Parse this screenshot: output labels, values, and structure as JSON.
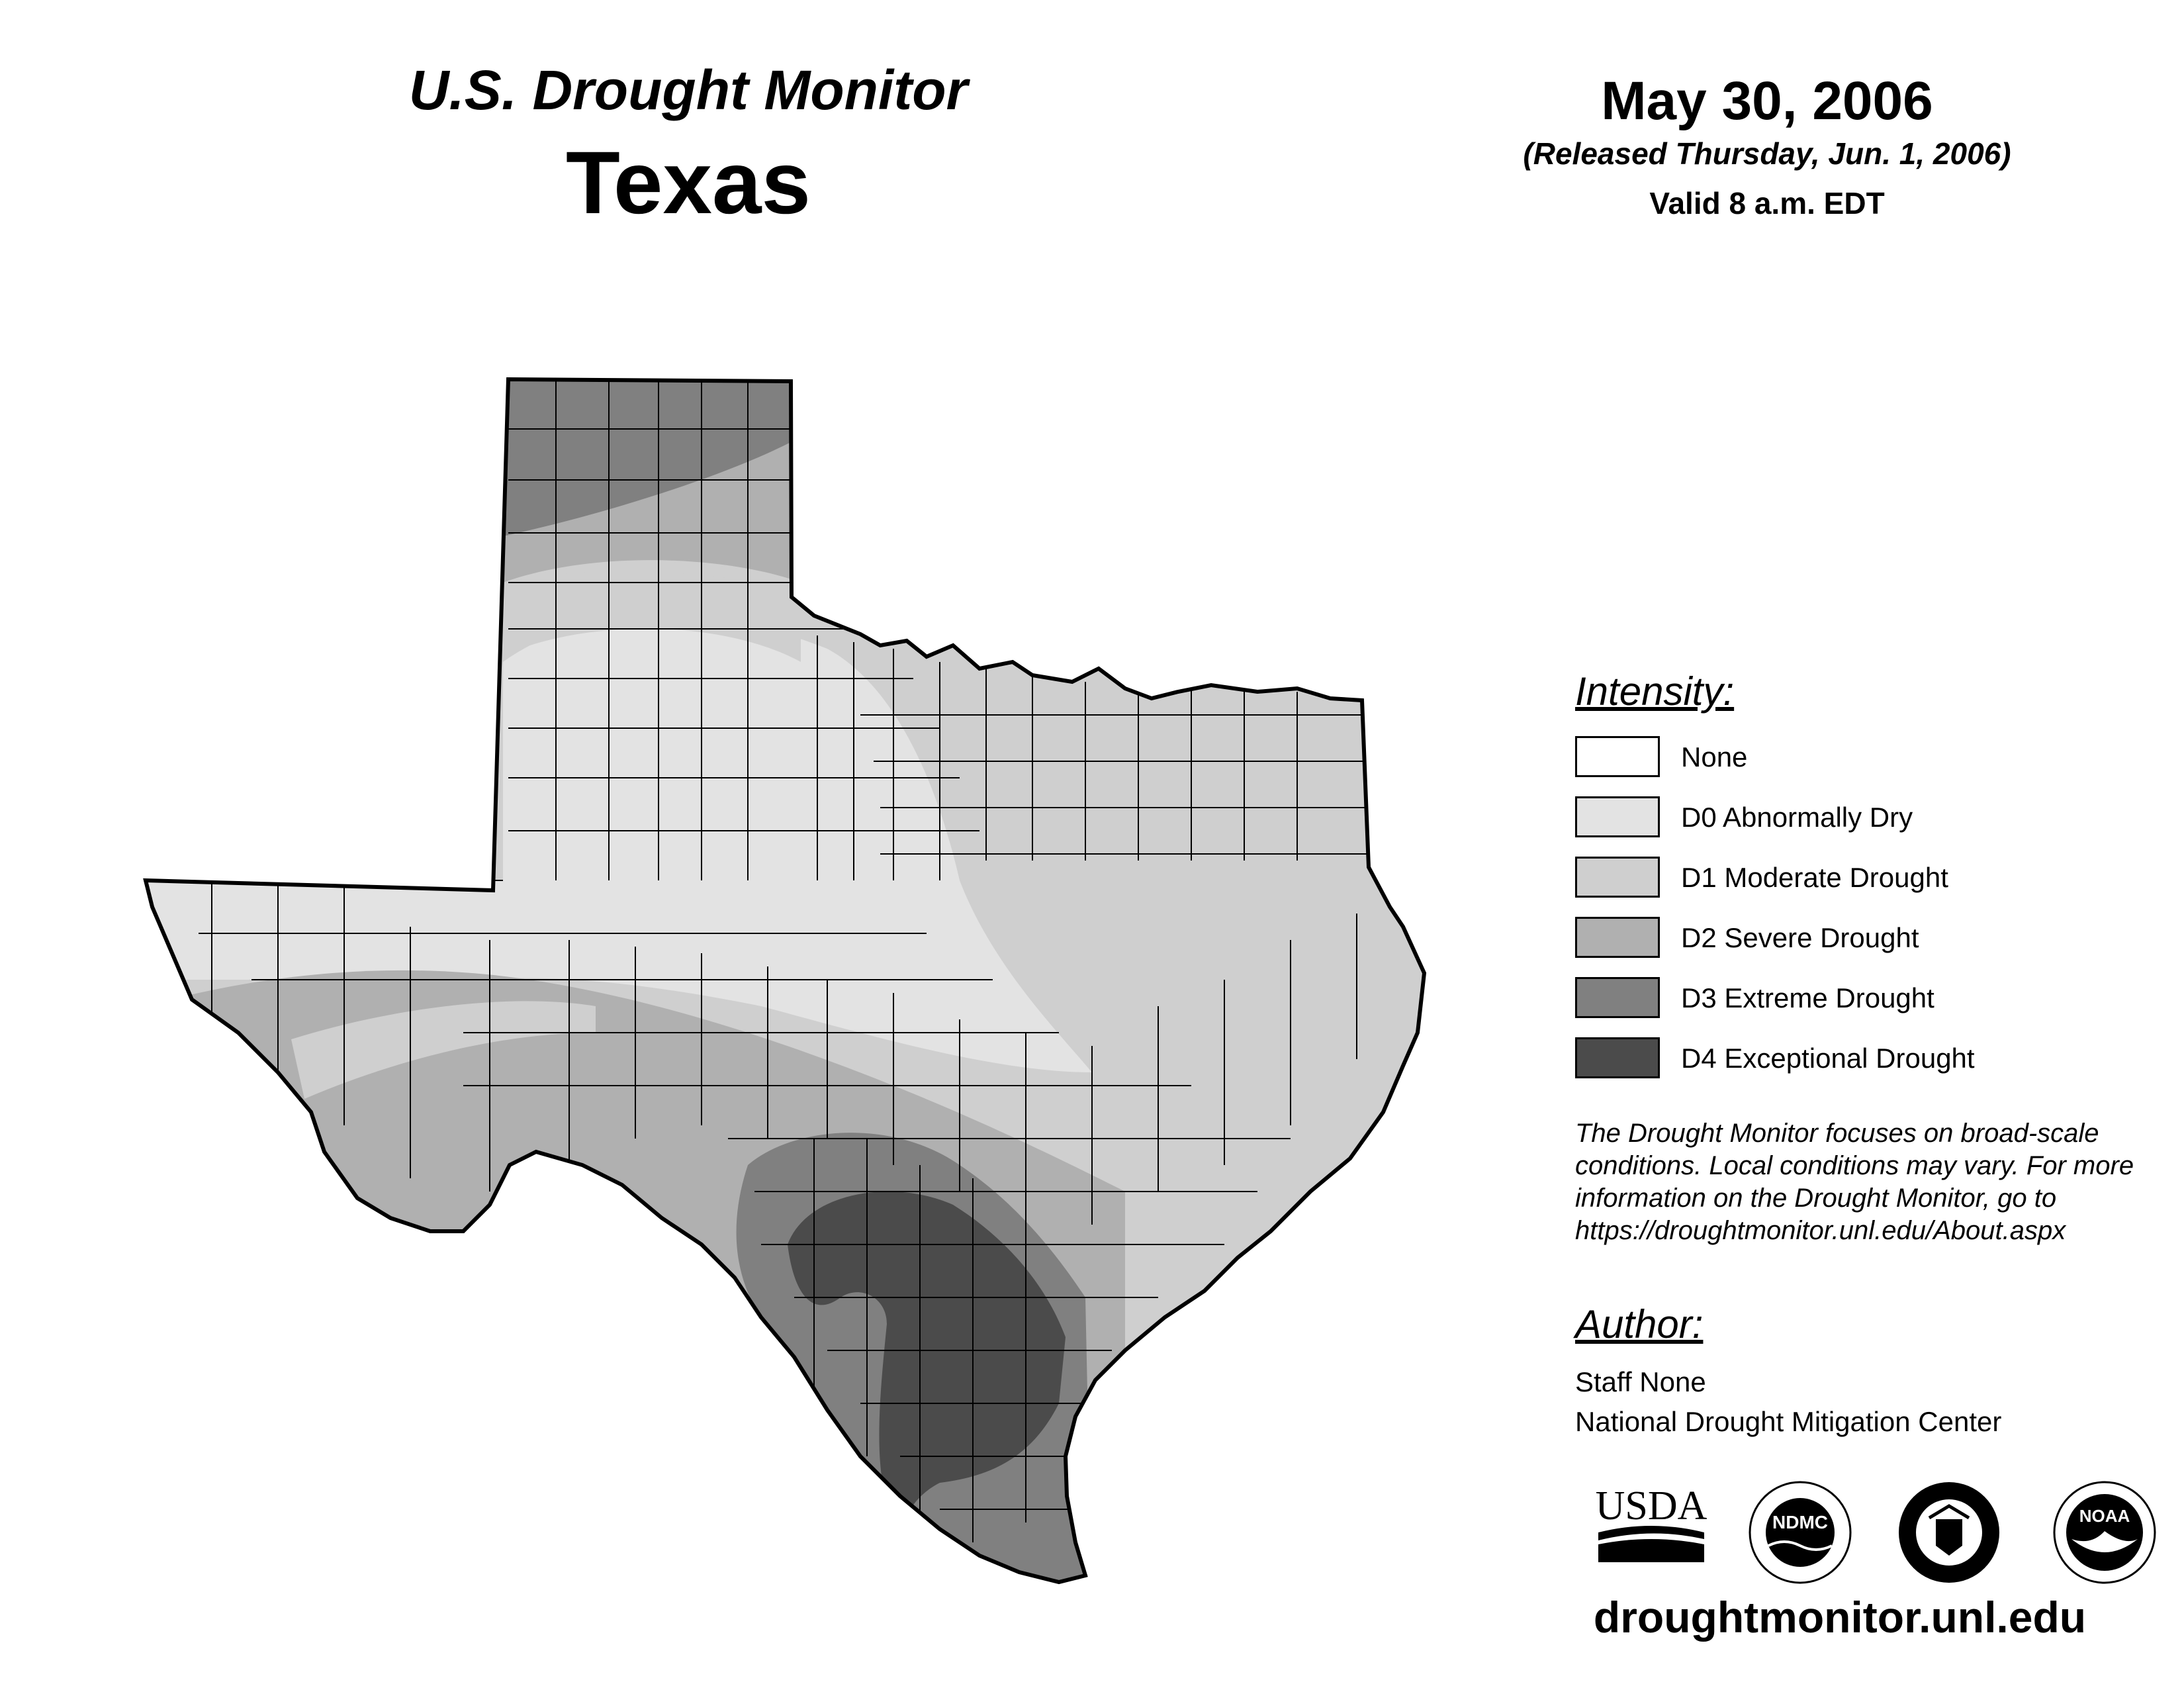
{
  "header": {
    "subtitle": "U.S. Drought Monitor",
    "state": "Texas",
    "date": "May 30, 2006",
    "released": "(Released Thursday, Jun. 1, 2006)",
    "valid": "Valid 8 a.m. EDT"
  },
  "legend": {
    "title": "Intensity:",
    "items": [
      {
        "label": "None",
        "color": "#ffffff"
      },
      {
        "label": "D0 Abnormally Dry",
        "color": "#e3e3e3"
      },
      {
        "label": "D1 Moderate Drought",
        "color": "#cfcfcf"
      },
      {
        "label": "D2 Severe Drought",
        "color": "#b0b0b0"
      },
      {
        "label": "D3 Extreme Drought",
        "color": "#808080"
      },
      {
        "label": "D4 Exceptional Drought",
        "color": "#4b4b4b"
      }
    ]
  },
  "note": "The Drought Monitor focuses on broad-scale conditions. Local conditions may vary. For more information on the Drought Monitor, go to https://droughtmonitor.unl.edu/About.aspx",
  "author": {
    "title": "Author:",
    "name": "Staff None",
    "org": "National Drought Mitigation Center"
  },
  "logos": {
    "usda": "USDA",
    "ndmc": "NDMC",
    "noaa": "NOAA"
  },
  "url": "droughtmonitor.unl.edu"
}
